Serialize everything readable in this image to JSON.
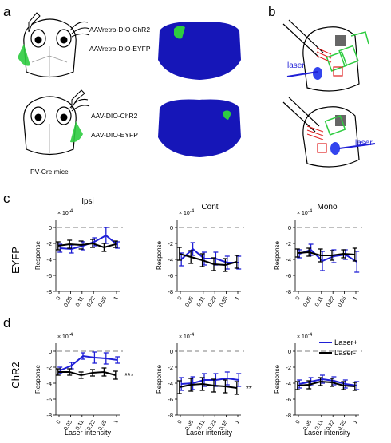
{
  "panels": {
    "a": "a",
    "b": "b",
    "c": "c",
    "d": "d"
  },
  "panel_a": {
    "top_constructs": [
      "AAVretro-DIO-ChR2",
      "AAVretro-DIO-EYFP"
    ],
    "bottom_constructs": [
      "AAV-DIO-ChR2",
      "AAV-DIO-EYFP"
    ],
    "mouse_label": "PV-Cre mice"
  },
  "panel_b": {
    "laser_label_top": "laser",
    "laser_label_bottom": "laser"
  },
  "row_labels": {
    "c": "EYFP",
    "d": "ChR2"
  },
  "column_titles": [
    "Ipsi",
    "Cont",
    "Mono"
  ],
  "axis": {
    "ylabel": "Response",
    "xlabel": "Laser intensity",
    "exponent_base": "× 10",
    "exponent_power": "-4",
    "yticks": [
      "0",
      "-2",
      "-4",
      "-6",
      "-8"
    ],
    "xticks": [
      "0",
      "0.05",
      "0.11",
      "0.22",
      "0.55",
      "1"
    ]
  },
  "legend": {
    "laser_on": "Laser+",
    "laser_off": "Laser-"
  },
  "colors": {
    "laser_on": "#1f1fd6",
    "laser_off": "#000000",
    "brain_bg": "#1616b8",
    "label_green": "#2ecc40",
    "fiber_red": "#e02020"
  },
  "chart_data": [
    {
      "type": "line",
      "row": "EYFP",
      "column": "Ipsi",
      "x": [
        0,
        0.05,
        0.11,
        0.22,
        0.55,
        1
      ],
      "ylim": [
        -8,
        1
      ],
      "series": [
        {
          "name": "Laser+",
          "values": [
            -2.6,
            -2.7,
            -2.3,
            -1.8,
            -1.0,
            -2.2
          ],
          "err": [
            0.5,
            0.5,
            0.5,
            0.5,
            1.0,
            0.4
          ]
        },
        {
          "name": "Laser-",
          "values": [
            -2.3,
            -2.1,
            -2.2,
            -2.0,
            -2.5,
            -2.1
          ],
          "err": [
            0.5,
            0.5,
            0.5,
            0.5,
            0.5,
            0.4
          ]
        }
      ]
    },
    {
      "type": "line",
      "row": "EYFP",
      "column": "Cont",
      "x": [
        0,
        0.05,
        0.11,
        0.22,
        0.55,
        1
      ],
      "ylim": [
        -8,
        1
      ],
      "series": [
        {
          "name": "Laser+",
          "values": [
            -4.0,
            -2.7,
            -3.9,
            -3.9,
            -4.4,
            -4.4
          ],
          "err": [
            0.8,
            0.8,
            0.8,
            0.8,
            0.8,
            0.8
          ]
        },
        {
          "name": "Laser-",
          "values": [
            -3.3,
            -3.7,
            -4.1,
            -4.6,
            -4.7,
            -4.3
          ],
          "err": [
            0.8,
            0.8,
            0.8,
            0.8,
            0.8,
            0.8
          ]
        }
      ]
    },
    {
      "type": "line",
      "row": "EYFP",
      "column": "Mono",
      "x": [
        0,
        0.05,
        0.11,
        0.22,
        0.55,
        1
      ],
      "ylim": [
        -8,
        1
      ],
      "series": [
        {
          "name": "Laser+",
          "values": [
            -3.3,
            -2.8,
            -4.2,
            -3.6,
            -3.4,
            -4.3
          ],
          "err": [
            0.5,
            0.7,
            1.2,
            0.8,
            0.6,
            1.3
          ]
        },
        {
          "name": "Laser-",
          "values": [
            -3.2,
            -3.1,
            -3.5,
            -3.5,
            -3.3,
            -3.4
          ],
          "err": [
            0.5,
            0.5,
            0.8,
            0.6,
            0.5,
            0.8
          ]
        }
      ]
    },
    {
      "type": "line",
      "row": "ChR2",
      "column": "Ipsi",
      "x": [
        0,
        0.05,
        0.11,
        0.22,
        0.55,
        1
      ],
      "ylim": [
        -8,
        1
      ],
      "series": [
        {
          "name": "Laser+",
          "values": [
            -2.4,
            -1.8,
            -0.6,
            -0.8,
            -0.9,
            -1.1
          ],
          "err": [
            0.4,
            0.4,
            0.4,
            0.7,
            0.7,
            0.4
          ]
        },
        {
          "name": "Laser-",
          "values": [
            -2.6,
            -2.6,
            -3.0,
            -2.7,
            -2.6,
            -3.0
          ],
          "err": [
            0.4,
            0.4,
            0.4,
            0.4,
            0.5,
            0.5
          ]
        }
      ],
      "annotation": "***"
    },
    {
      "type": "line",
      "row": "ChR2",
      "column": "Cont",
      "x": [
        0,
        0.05,
        0.11,
        0.22,
        0.55,
        1
      ],
      "ylim": [
        -8,
        1
      ],
      "series": [
        {
          "name": "Laser+",
          "values": [
            -4.1,
            -4.0,
            -3.6,
            -3.6,
            -3.4,
            -3.6
          ],
          "err": [
            0.8,
            0.8,
            0.8,
            0.8,
            0.8,
            0.8
          ]
        },
        {
          "name": "Laser-",
          "values": [
            -4.5,
            -4.2,
            -4.1,
            -4.3,
            -4.4,
            -4.6
          ],
          "err": [
            0.8,
            0.8,
            0.8,
            0.8,
            0.8,
            0.8
          ]
        }
      ],
      "annotation": "**"
    },
    {
      "type": "line",
      "row": "ChR2",
      "column": "Mono",
      "x": [
        0,
        0.05,
        0.11,
        0.22,
        0.55,
        1
      ],
      "ylim": [
        -8,
        1
      ],
      "series": [
        {
          "name": "Laser+",
          "values": [
            -4.1,
            -3.8,
            -3.5,
            -3.7,
            -4.1,
            -4.3
          ],
          "err": [
            0.5,
            0.5,
            0.5,
            0.5,
            0.5,
            0.5
          ]
        },
        {
          "name": "Laser-",
          "values": [
            -4.3,
            -4.2,
            -3.8,
            -3.9,
            -4.3,
            -4.4
          ],
          "err": [
            0.5,
            0.5,
            0.5,
            0.5,
            0.5,
            0.5
          ]
        }
      ]
    }
  ]
}
